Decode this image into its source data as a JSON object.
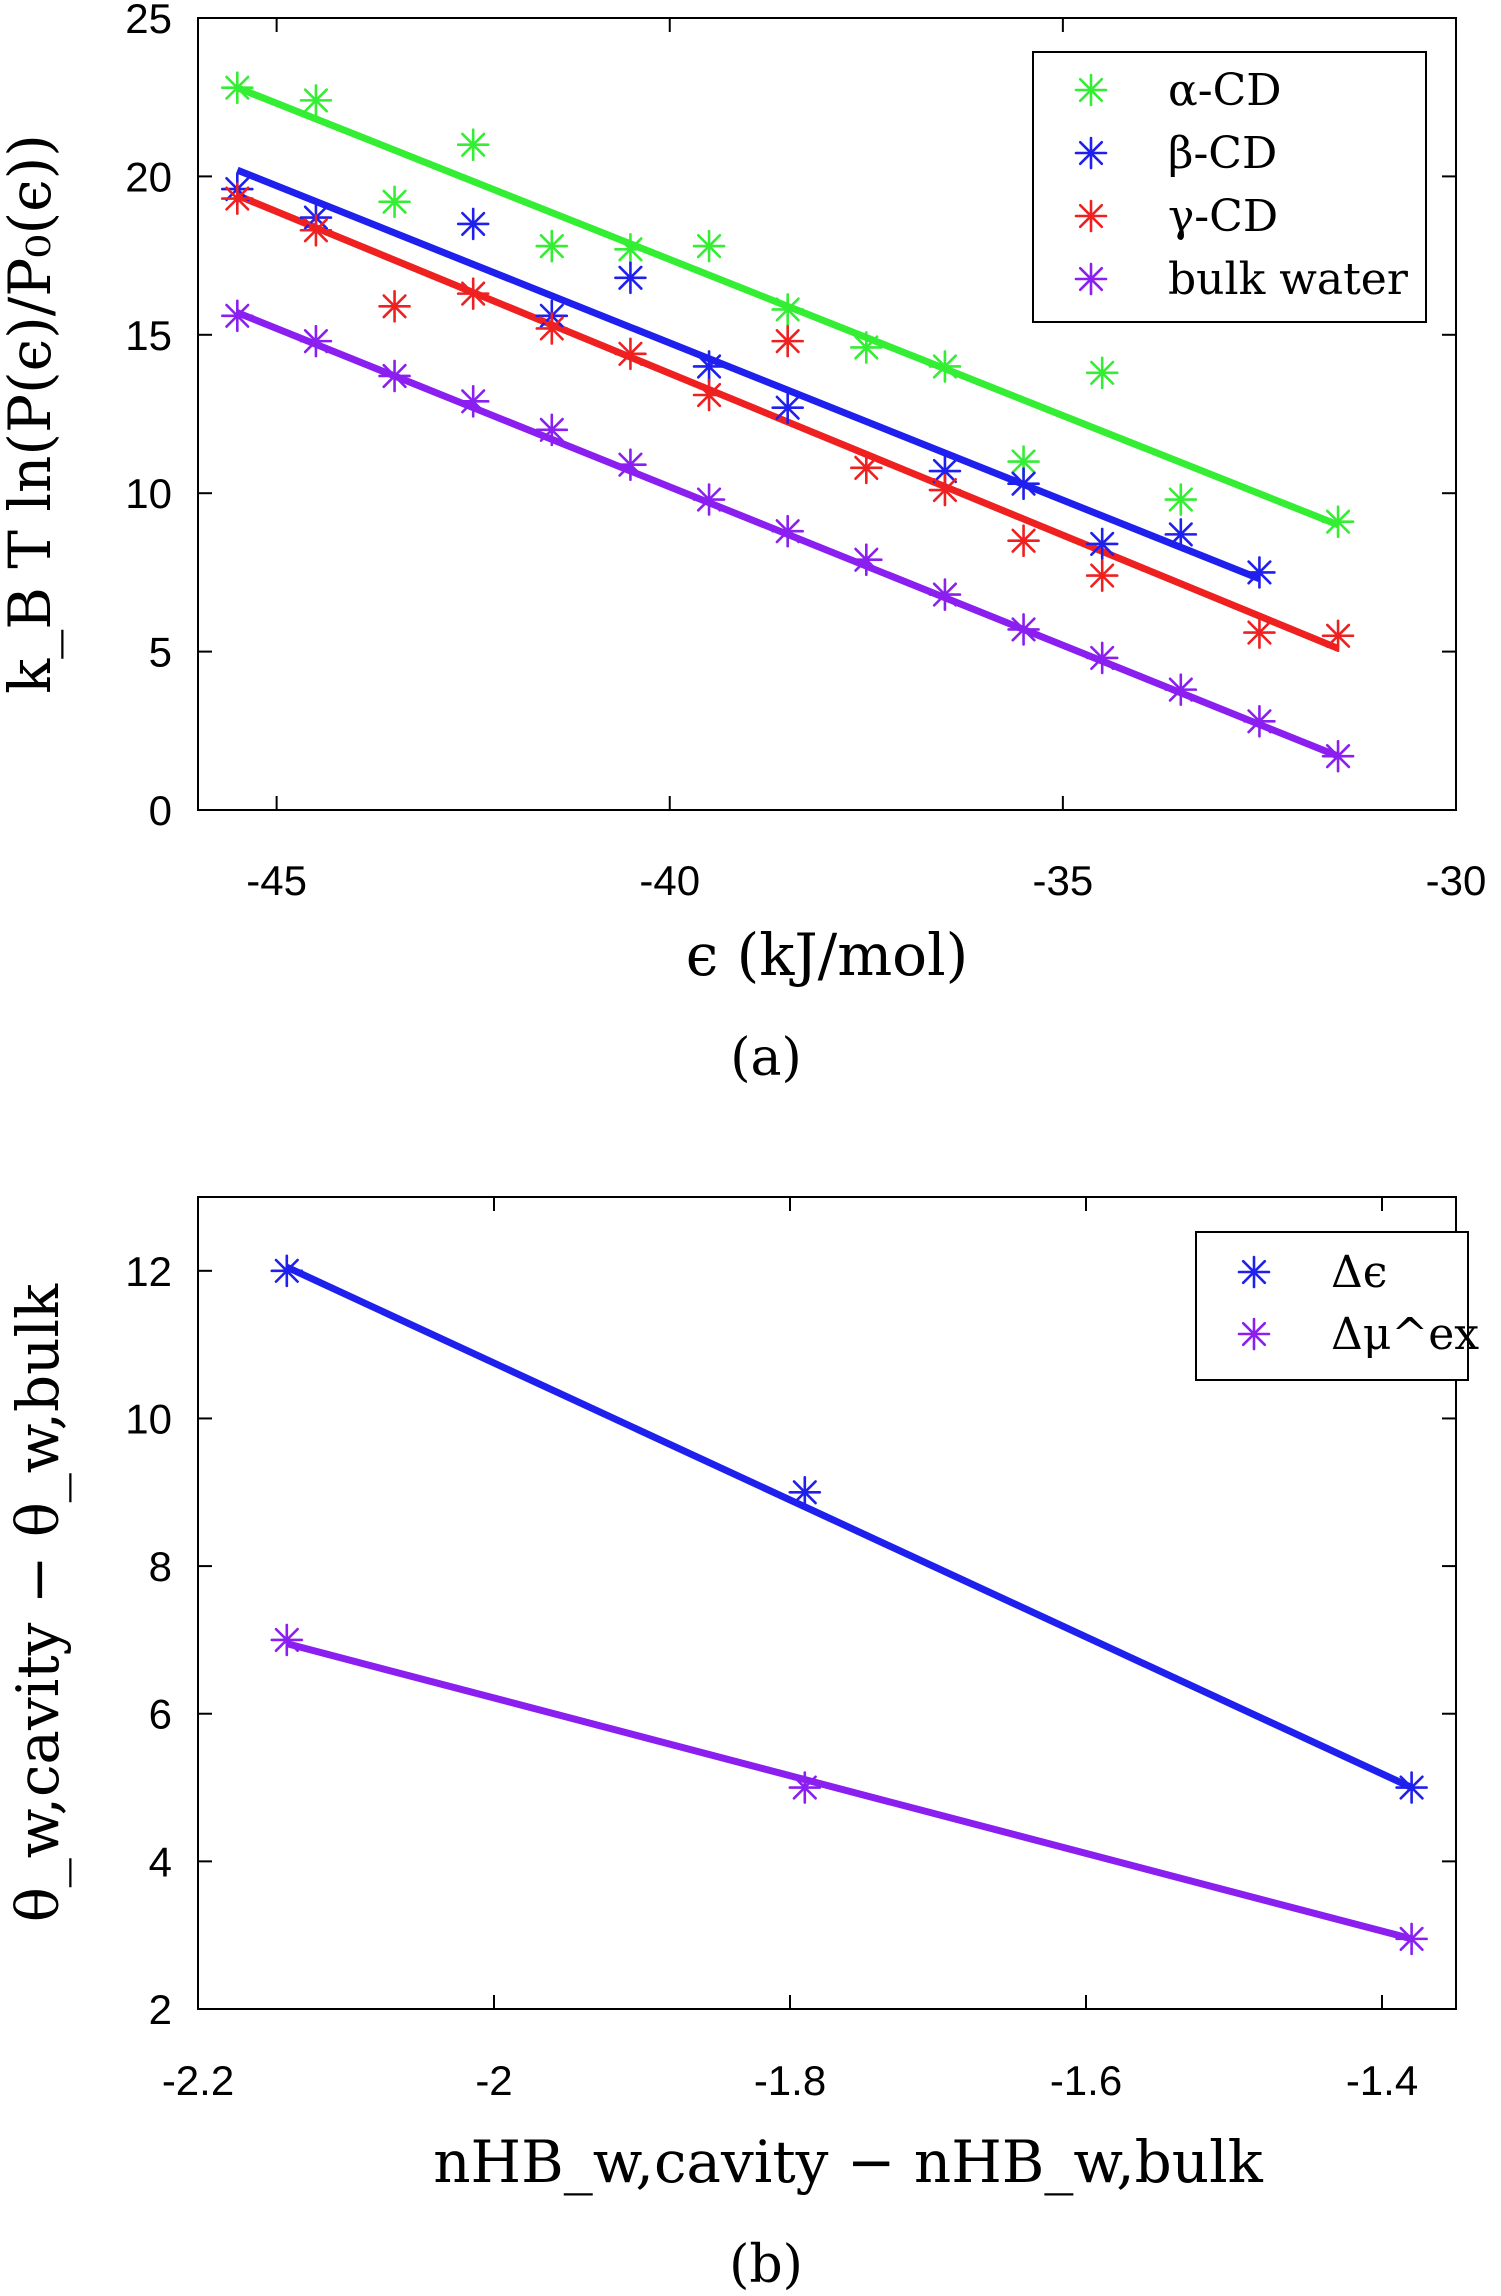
{
  "chart_data": [
    {
      "id": "a",
      "type": "scatter",
      "caption": "(a)",
      "xlabel": "ϵ (kJ/mol)",
      "ylabel": "k_B T ln(P(ϵ)/P₀(ϵ))",
      "xlim": [
        -46,
        -30
      ],
      "ylim": [
        0,
        25
      ],
      "xticks": [
        -45,
        -40,
        -35,
        -30
      ],
      "yticks": [
        0,
        5,
        10,
        15,
        20,
        25
      ],
      "legend_position": "top-right",
      "series": [
        {
          "name": "α-CD",
          "color": "#33ee33",
          "x": [
            -45.5,
            -44.5,
            -43.5,
            -42.5,
            -41.5,
            -40.5,
            -39.5,
            -38.5,
            -37.5,
            -36.5,
            -35.5,
            -34.5,
            -33.5,
            -31.5
          ],
          "y": [
            22.8,
            22.4,
            19.2,
            21.0,
            17.8,
            17.7,
            17.8,
            15.8,
            14.6,
            14.0,
            11.0,
            13.8,
            9.8,
            9.1
          ],
          "fit": [
            [
              -45.5,
              22.8
            ],
            [
              -31.5,
              9.0
            ]
          ]
        },
        {
          "name": "β-CD",
          "color": "#1f1fee",
          "x": [
            -45.5,
            -44.5,
            -42.5,
            -41.5,
            -40.5,
            -39.5,
            -38.5,
            -36.5,
            -35.5,
            -34.5,
            -33.5,
            -32.5
          ],
          "y": [
            19.6,
            18.7,
            18.5,
            15.6,
            16.8,
            14.0,
            12.7,
            10.7,
            10.3,
            8.4,
            8.7,
            7.5
          ],
          "fit": [
            [
              -45.5,
              20.2
            ],
            [
              -32.5,
              7.3
            ]
          ]
        },
        {
          "name": "γ-CD",
          "color": "#ee2020",
          "x": [
            -45.5,
            -44.5,
            -43.5,
            -42.5,
            -41.5,
            -40.5,
            -39.5,
            -38.5,
            -37.5,
            -36.5,
            -35.5,
            -34.5,
            -32.5,
            -31.5
          ],
          "y": [
            19.3,
            18.3,
            15.9,
            16.3,
            15.2,
            14.4,
            13.1,
            14.8,
            10.8,
            10.1,
            8.5,
            7.4,
            5.6,
            5.5
          ],
          "fit": [
            [
              -45.5,
              19.4
            ],
            [
              -31.5,
              5.1
            ]
          ]
        },
        {
          "name": "bulk water",
          "color": "#8a1ff0",
          "x": [
            -45.5,
            -44.5,
            -43.5,
            -42.5,
            -41.5,
            -40.5,
            -39.5,
            -38.5,
            -37.5,
            -36.5,
            -35.5,
            -34.5,
            -33.5,
            -32.5,
            -31.5
          ],
          "y": [
            15.6,
            14.8,
            13.7,
            12.9,
            12.0,
            10.9,
            9.8,
            8.8,
            7.9,
            6.8,
            5.7,
            4.8,
            3.8,
            2.8,
            1.7
          ],
          "fit": [
            [
              -45.5,
              15.7
            ],
            [
              -31.5,
              1.7
            ]
          ]
        }
      ]
    },
    {
      "id": "b",
      "type": "scatter",
      "caption": "(b)",
      "xlabel": "nHB_w,cavity − nHB_w,bulk",
      "ylabel": "θ_w,cavity − θ_w,bulk",
      "xlim": [
        -2.2,
        -1.35
      ],
      "ylim": [
        2,
        13
      ],
      "xticks": [
        -2.2,
        -2.0,
        -1.8,
        -1.6,
        -1.4
      ],
      "xtick_labels": [
        "-2.2",
        "-2",
        "-1.8",
        "-1.6",
        "-1.4"
      ],
      "yticks": [
        2,
        4,
        6,
        8,
        10,
        12
      ],
      "legend_position": "top-right",
      "series": [
        {
          "name": "Δϵ",
          "color": "#1f1fee",
          "x": [
            -2.14,
            -1.79,
            -1.38
          ],
          "y": [
            12.0,
            9.0,
            5.0
          ],
          "fit": [
            [
              -2.14,
              12.05
            ],
            [
              -1.38,
              5.0
            ]
          ]
        },
        {
          "name": "Δμ^ex",
          "color": "#8a1ff0",
          "x": [
            -2.14,
            -1.79,
            -1.38
          ],
          "y": [
            7.0,
            5.0,
            2.95
          ],
          "fit": [
            [
              -2.14,
              6.95
            ],
            [
              -1.38,
              2.95
            ]
          ]
        }
      ]
    }
  ]
}
